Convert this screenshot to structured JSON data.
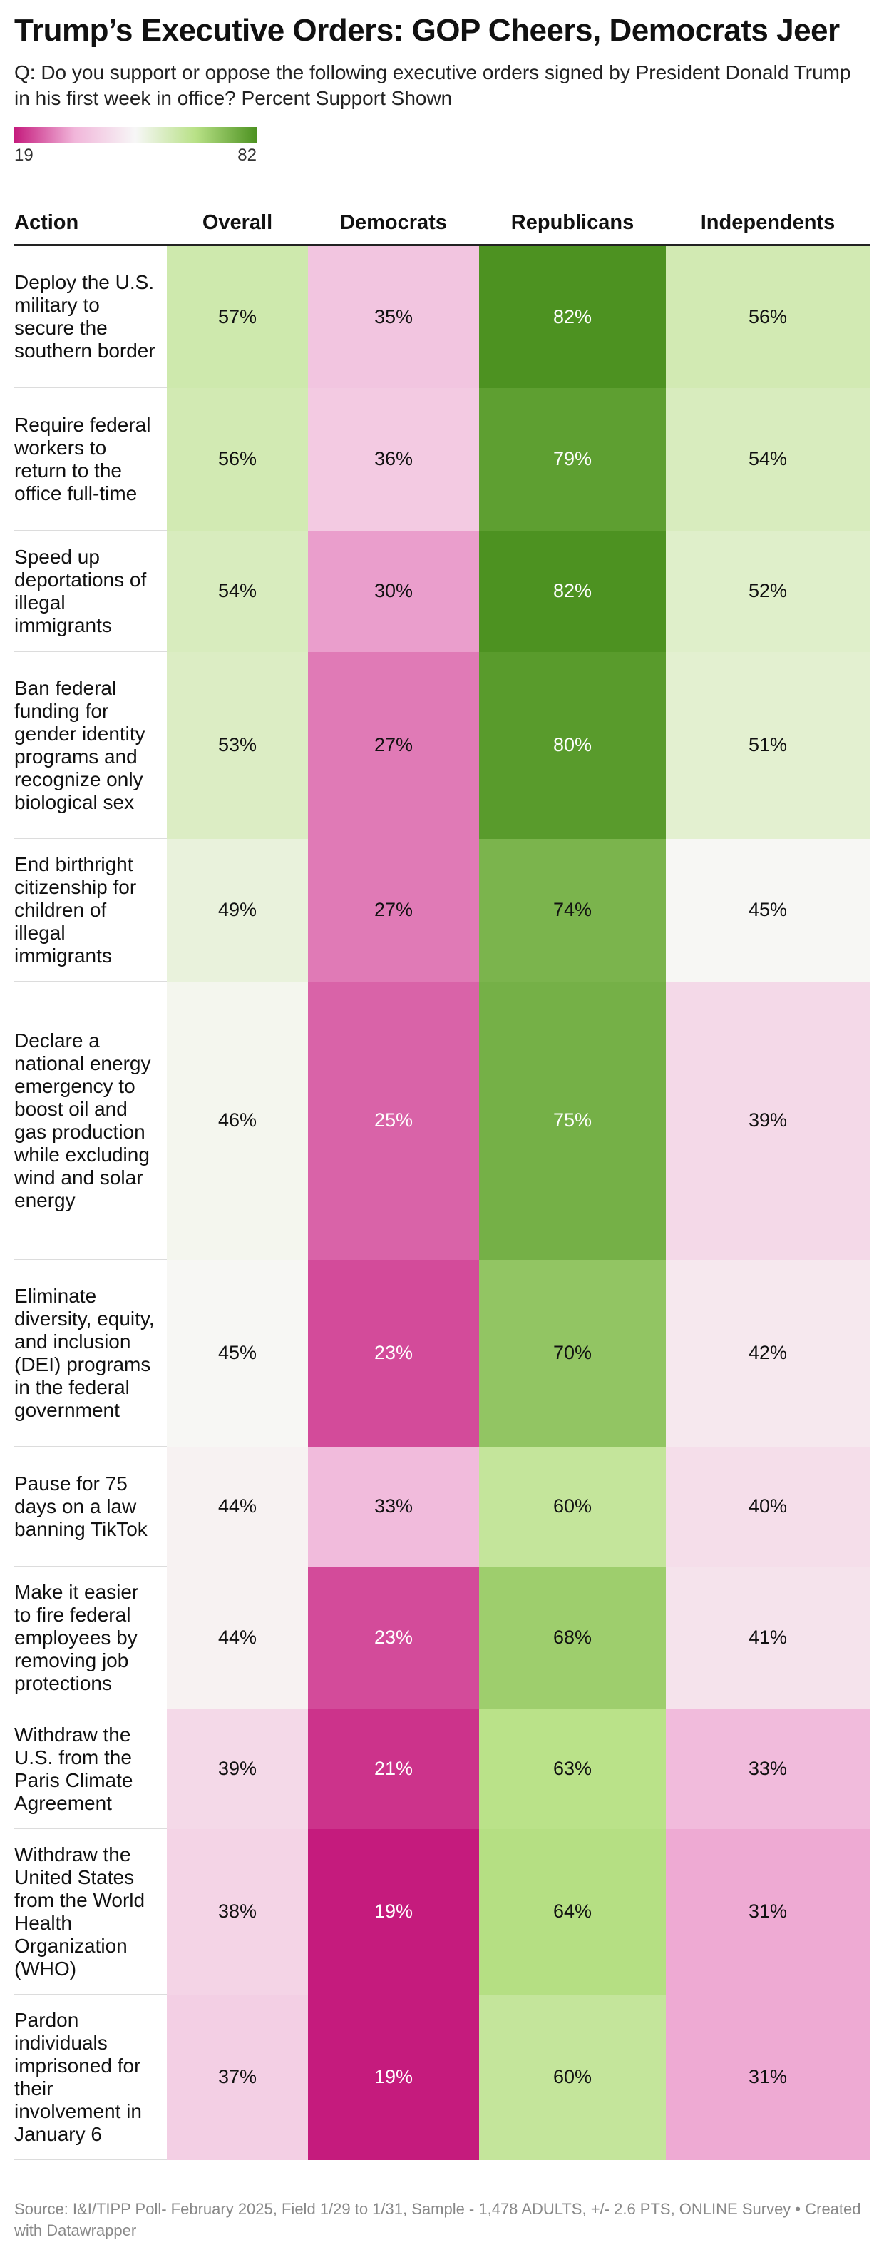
{
  "title": "Trump’s Executive Orders: GOP Cheers, Democrats Jeer",
  "subtitle": "Q: Do you support or oppose the following executive orders signed by President Donald Trump in his first week in office? Percent Support Shown",
  "legend": {
    "min": "19",
    "max": "82"
  },
  "source": "Source: I&I/TIPP Poll- February 2025, Field 1/29 to 1/31, Sample - 1,478 ADULTS, +/- 2.6 PTS, ONLINE Survey • Created with Datawrapper",
  "colors": {
    "low": "#c51b7d",
    "lowmid": "#f1b6da",
    "mid": "#f7f7f7",
    "highmid": "#b8e186",
    "high": "#4d9221"
  },
  "chart_data": {
    "type": "table",
    "title": "Trump’s Executive Orders: GOP Cheers, Democrats Jeer",
    "columns": [
      "Action",
      "Overall",
      "Democrats",
      "Republicans",
      "Independents"
    ],
    "color_scale": {
      "min": 19,
      "max": 82
    },
    "rows": [
      {
        "action": "Deploy the U.S. military to secure the southern border",
        "values": [
          57,
          35,
          82,
          56
        ]
      },
      {
        "action": "Require federal workers to return to the office full-time",
        "values": [
          56,
          36,
          79,
          54
        ]
      },
      {
        "action": "Speed up deportations of illegal immigrants",
        "values": [
          54,
          30,
          82,
          52
        ]
      },
      {
        "action": "Ban federal funding for gender identity programs and recognize only biological sex",
        "values": [
          53,
          27,
          80,
          51
        ]
      },
      {
        "action": "End birthright citizenship for children of illegal immigrants",
        "values": [
          49,
          27,
          74,
          45
        ]
      },
      {
        "action": "Declare a national energy emergency to boost oil and gas production while excluding wind and solar energy",
        "values": [
          46,
          25,
          75,
          39
        ]
      },
      {
        "action": "Eliminate diversity, equity, and inclusion (DEI) programs in the federal government",
        "values": [
          45,
          23,
          70,
          42
        ]
      },
      {
        "action": "Pause for 75 days on a law banning TikTok",
        "values": [
          44,
          33,
          60,
          40
        ]
      },
      {
        "action": "Make it easier to fire federal employees by removing job protections",
        "values": [
          44,
          23,
          68,
          41
        ]
      },
      {
        "action": "Withdraw the U.S. from the Paris Climate Agreement",
        "values": [
          39,
          21,
          63,
          33
        ]
      },
      {
        "action": "Withdraw the United States from the World Health Organization (WHO)",
        "values": [
          38,
          19,
          64,
          31
        ]
      },
      {
        "action": "Pardon individuals imprisoned for their involvement in January 6",
        "values": [
          37,
          19,
          60,
          31
        ]
      }
    ]
  }
}
